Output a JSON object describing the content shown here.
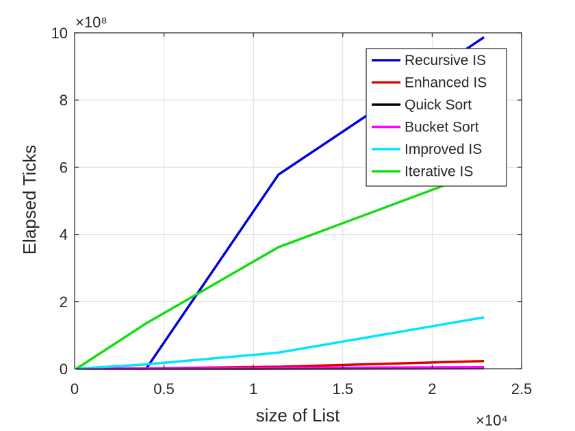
{
  "chart_data": {
    "type": "line",
    "xlabel": "size of List",
    "ylabel": "Elapsed Ticks",
    "x_exponent_label": "×10⁴",
    "y_exponent_label": "×10⁸",
    "xlim": [
      0,
      25000
    ],
    "ylim": [
      0,
      1000000000
    ],
    "x_ticks": [
      0,
      5000,
      10000,
      15000,
      20000,
      25000
    ],
    "x_tick_labels": [
      "0",
      "0.5",
      "1",
      "1.5",
      "2",
      "2.5"
    ],
    "y_ticks": [
      0,
      200000000,
      400000000,
      600000000,
      800000000,
      1000000000
    ],
    "y_tick_labels": [
      "0",
      "2",
      "4",
      "6",
      "8",
      "10"
    ],
    "grid": true,
    "legend_position": "top-right",
    "series": [
      {
        "name": "Recursive IS",
        "color": "#0000dd",
        "x": [
          100,
          4000,
          11400,
          22900
        ],
        "y": [
          0,
          0,
          578000000,
          987000000
        ]
      },
      {
        "name": "Enhanced IS",
        "color": "#dd0000",
        "x": [
          100,
          4000,
          11400,
          22900
        ],
        "y": [
          0,
          1000000,
          6000000,
          23000000
        ]
      },
      {
        "name": "Quick Sort",
        "color": "#000000",
        "x": [
          100,
          4000,
          11400,
          22900
        ],
        "y": [
          0,
          0,
          500000,
          1500000
        ]
      },
      {
        "name": "Bucket Sort",
        "color": "#ff00ff",
        "x": [
          100,
          4000,
          11400,
          22900
        ],
        "y": [
          0,
          1000000,
          2500000,
          4500000
        ]
      },
      {
        "name": "Improved IS",
        "color": "#00e5ff",
        "x": [
          100,
          4000,
          11400,
          22900
        ],
        "y": [
          0,
          13000000,
          48000000,
          153000000
        ]
      },
      {
        "name": "Iterative IS",
        "color": "#11dd11",
        "x": [
          100,
          4000,
          11400,
          22900
        ],
        "y": [
          0,
          135000000,
          362000000,
          590000000
        ]
      }
    ]
  }
}
